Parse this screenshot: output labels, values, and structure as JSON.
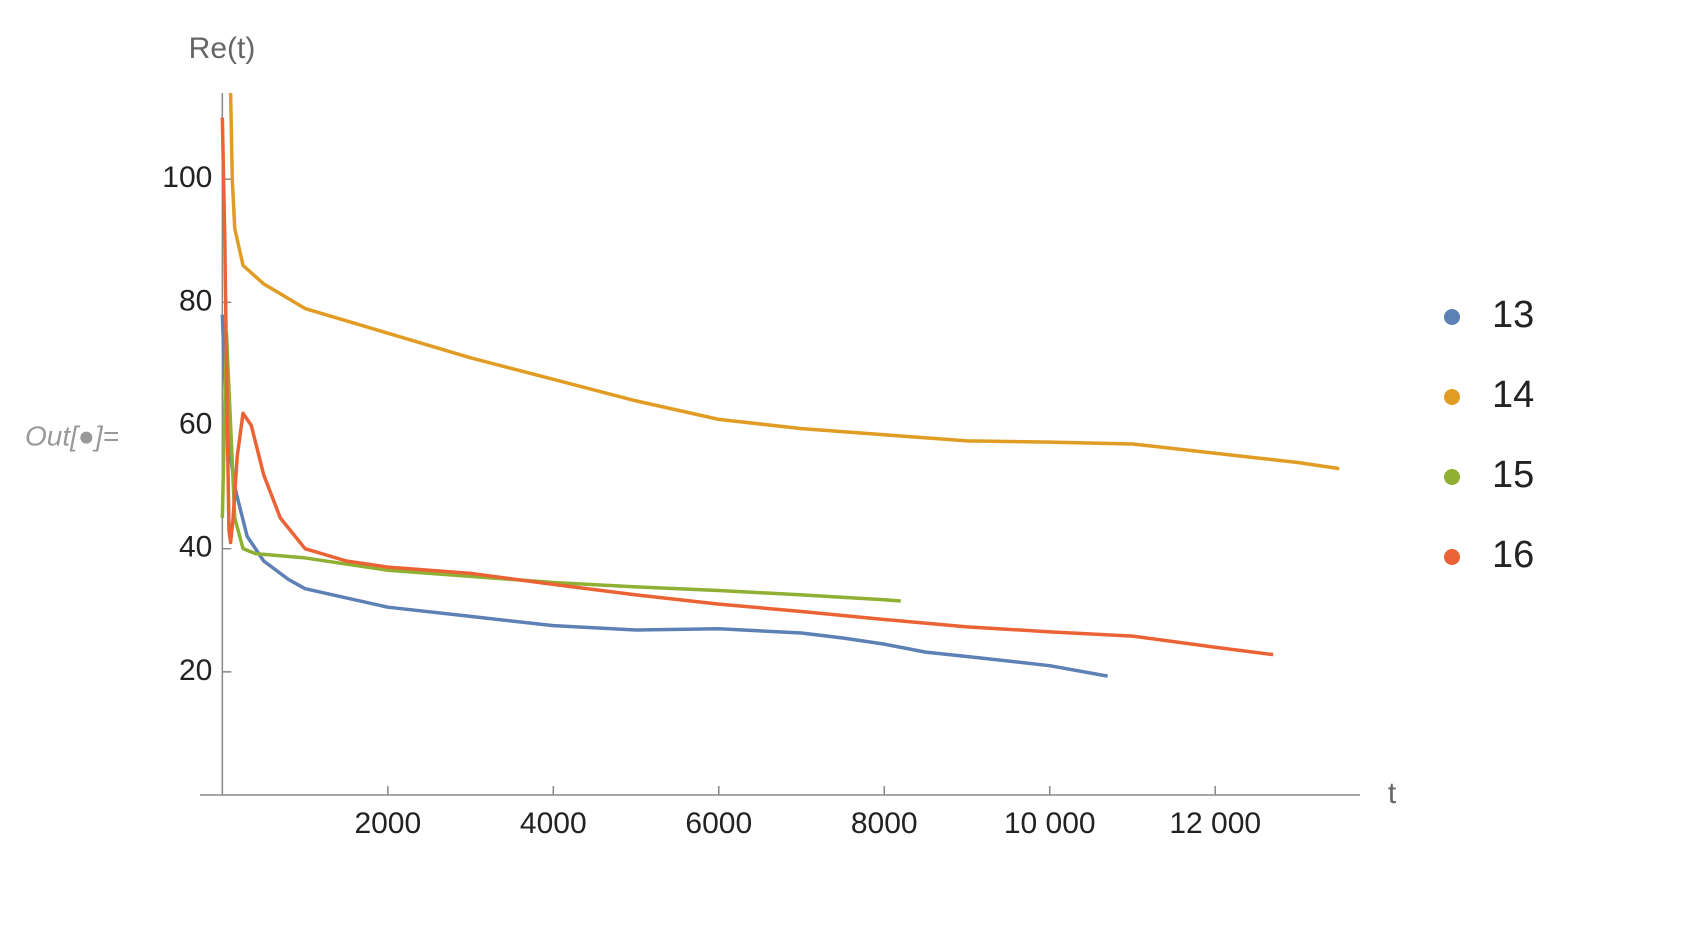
{
  "prompt_label": "Out[●]=",
  "chart_data": {
    "type": "line",
    "ylabel": "Re(t)",
    "xlabel": "t",
    "xlim": [
      -270,
      13750
    ],
    "ylim": [
      0,
      114
    ],
    "xticks": [
      2000,
      4000,
      6000,
      8000,
      {
        "value": 10000,
        "label": "10 000"
      },
      {
        "value": 12000,
        "label": "12 000"
      }
    ],
    "yticks": [
      20,
      40,
      60,
      80,
      100
    ],
    "series": [
      {
        "name": "13",
        "color": "#5e81b5",
        "x": [
          0,
          50,
          150,
          300,
          500,
          800,
          1000,
          1500,
          2000,
          3000,
          4000,
          5000,
          6000,
          7000,
          7500,
          8000,
          8500,
          9000,
          10000,
          10700
        ],
        "values": [
          78,
          60,
          50,
          42,
          38,
          35,
          33.5,
          32,
          30.5,
          29,
          27.5,
          26.8,
          27,
          26.3,
          25.5,
          24.5,
          23.2,
          22.5,
          21,
          19.3
        ]
      },
      {
        "name": "14",
        "color": "#e19c24",
        "x": [
          100,
          120,
          150,
          250,
          500,
          1000,
          2000,
          3000,
          4000,
          5000,
          6000,
          7000,
          8000,
          9000,
          10000,
          11000,
          12000,
          13000,
          13500
        ],
        "values": [
          114,
          100,
          92,
          86,
          83,
          79,
          75,
          71,
          67.5,
          64,
          61,
          59.5,
          58.5,
          57.5,
          57.3,
          57,
          55.5,
          54,
          53
        ]
      },
      {
        "name": "15",
        "color": "#8fb032",
        "x": [
          0,
          50,
          100,
          150,
          250,
          400,
          1000,
          2000,
          3000,
          4000,
          5000,
          6000,
          7000,
          8000,
          8200
        ],
        "values": [
          45,
          75,
          60,
          45,
          40,
          39.2,
          38.5,
          36.5,
          35.5,
          34.5,
          33.8,
          33.2,
          32.5,
          31.7,
          31.5
        ]
      },
      {
        "name": "16",
        "color": "#eb6235",
        "x": [
          0,
          30,
          60,
          80,
          100,
          130,
          180,
          250,
          350,
          500,
          700,
          1000,
          1500,
          2000,
          3000,
          4000,
          5000,
          6000,
          7000,
          8000,
          9000,
          10000,
          11000,
          12000,
          12700
        ],
        "values": [
          110,
          90,
          60,
          43,
          41,
          45,
          55,
          62,
          60,
          52,
          45,
          40,
          38,
          37,
          36,
          34.2,
          32.5,
          31,
          29.8,
          28.5,
          27.3,
          26.5,
          25.8,
          24,
          22.8
        ]
      }
    ]
  }
}
